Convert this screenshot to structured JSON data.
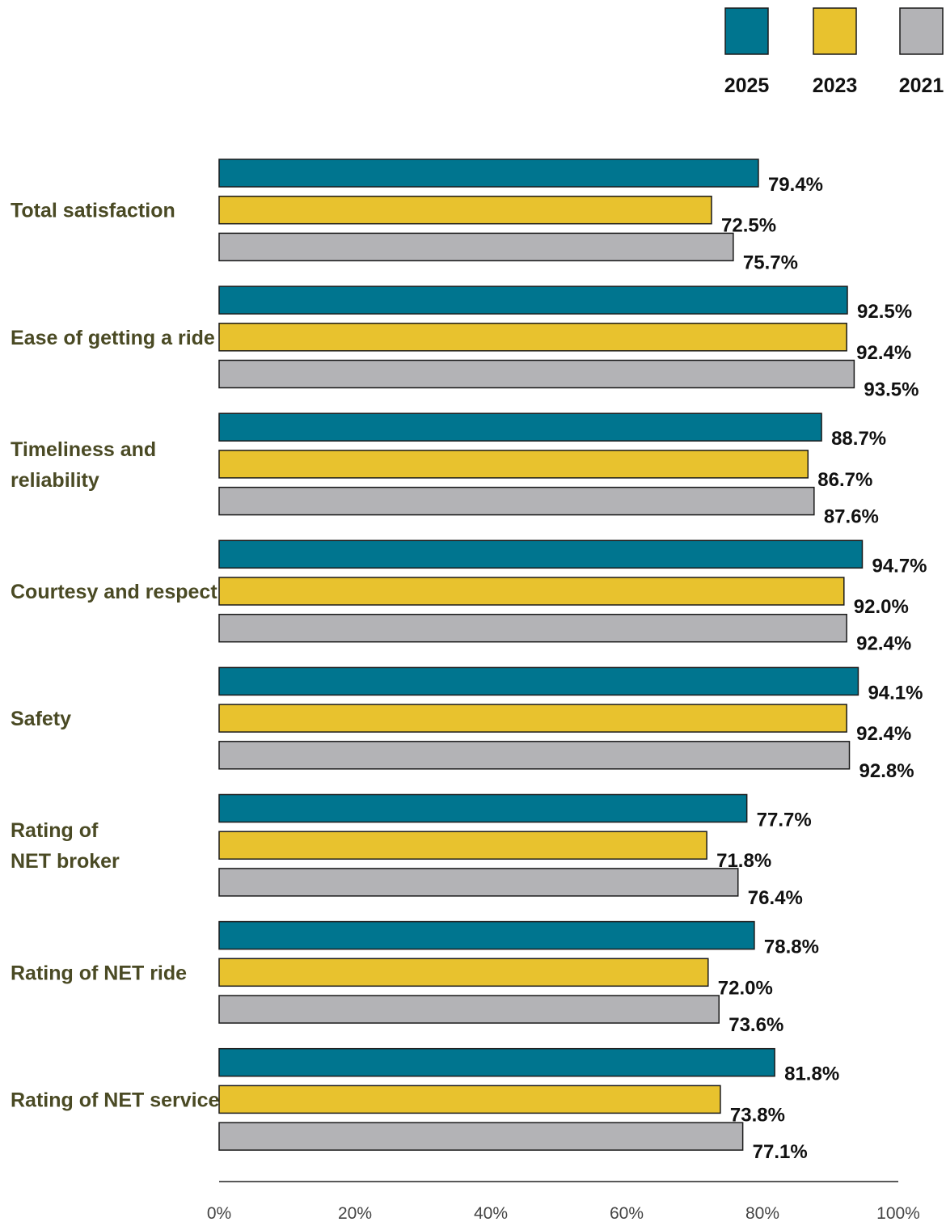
{
  "chart_data": {
    "type": "bar",
    "orientation": "horizontal",
    "categories": [
      [
        "Total satisfaction"
      ],
      [
        "Ease of getting a ride"
      ],
      [
        "Timeliness and",
        "reliability"
      ],
      [
        "Courtesy and respect"
      ],
      [
        "Safety"
      ],
      [
        "Rating of",
        "NET broker"
      ],
      [
        "Rating of NET ride"
      ],
      [
        "Rating of NET service"
      ]
    ],
    "series": [
      {
        "name": "2025",
        "color": "#00758f",
        "values": [
          79.4,
          92.5,
          88.7,
          94.7,
          94.1,
          77.7,
          78.8,
          81.8
        ]
      },
      {
        "name": "2023",
        "color": "#e8c22e",
        "values": [
          72.5,
          92.4,
          86.7,
          92.0,
          92.4,
          71.8,
          72.0,
          73.8
        ]
      },
      {
        "name": "2021",
        "color": "#b3b3b6",
        "values": [
          75.7,
          93.5,
          87.6,
          92.4,
          92.8,
          76.4,
          73.6,
          77.1
        ]
      }
    ],
    "value_suffix": "%",
    "xlim": [
      0,
      100
    ],
    "xticks": [
      "0%",
      "20%",
      "40%",
      "60%",
      "80%",
      "100%"
    ],
    "grid": false,
    "legend_position": "top-right"
  }
}
